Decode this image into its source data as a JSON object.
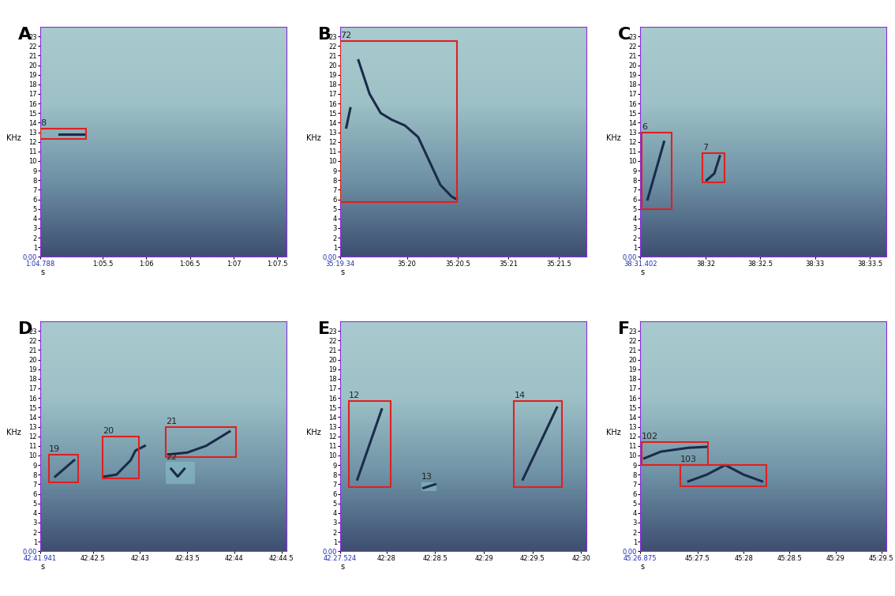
{
  "chart_data": [
    {
      "type": "spectrogram",
      "title": "A",
      "xlabel": "s",
      "ylabel": "KHz",
      "xlim": [
        64.788,
        67.6
      ],
      "xticks": [
        {
          "value": 64.788,
          "label": "1:04.788"
        },
        {
          "value": 65.5,
          "label": "1:05.5"
        },
        {
          "value": 66,
          "label": "1:06"
        },
        {
          "value": 66.5,
          "label": "1:06.5"
        },
        {
          "value": 67,
          "label": "1:07"
        },
        {
          "value": 67.5,
          "label": "1:07.5"
        }
      ],
      "ylim": [
        0,
        24
      ],
      "yticks": [
        {
          "value": 0,
          "label": "0.00"
        },
        1,
        2,
        3,
        4,
        5,
        6,
        7,
        8,
        9,
        10,
        11,
        12,
        13,
        14,
        15,
        16,
        17,
        18,
        19,
        20,
        21,
        22,
        23
      ],
      "calls": [
        {
          "x": [
            65.0,
            65.28
          ],
          "y": [
            12.8,
            12.8
          ]
        }
      ],
      "boxes": [
        {
          "label": "8",
          "x": [
            64.79,
            65.31
          ],
          "y": [
            12.3,
            13.4
          ],
          "color": "#e02020"
        }
      ]
    },
    {
      "type": "spectrogram",
      "title": "B",
      "xlabel": "s",
      "ylabel": "KHz",
      "xlim": [
        2119.34,
        2121.77
      ],
      "xticks": [
        {
          "value": 2119.34,
          "label": "35:19.34"
        },
        {
          "value": 2120,
          "label": "35:20"
        },
        {
          "value": 2120.5,
          "label": "35:20.5"
        },
        {
          "value": 2121,
          "label": "35:21"
        },
        {
          "value": 2121.5,
          "label": "35:21.5"
        }
      ],
      "ylim": [
        0,
        24
      ],
      "yticks": [
        {
          "value": 0,
          "label": "0.00"
        },
        1,
        2,
        3,
        4,
        5,
        6,
        7,
        8,
        9,
        10,
        11,
        12,
        13,
        14,
        15,
        16,
        17,
        18,
        19,
        20,
        21,
        22,
        23
      ],
      "calls": [
        {
          "x": [
            2119.52,
            2119.63,
            2119.74,
            2119.85,
            2119.98,
            2120.11,
            2120.22,
            2120.33,
            2120.44,
            2120.49
          ],
          "y": [
            20.5,
            17,
            15,
            14.3,
            13.7,
            12.5,
            10,
            7.5,
            6.3,
            6
          ]
        },
        {
          "x": [
            2119.4,
            2119.44
          ],
          "y": [
            13.5,
            15.5
          ]
        }
      ],
      "boxes": [
        {
          "label": "72",
          "x": [
            2119.34,
            2120.49
          ],
          "y": [
            5.7,
            22.5
          ],
          "color": "#e02020"
        }
      ]
    },
    {
      "type": "spectrogram",
      "title": "C",
      "xlabel": "s",
      "ylabel": "KHz",
      "xlim": [
        2311.402,
        2313.65
      ],
      "xticks": [
        {
          "value": 2311.402,
          "label": "38:31.402"
        },
        {
          "value": 2312,
          "label": "38:32"
        },
        {
          "value": 2312.5,
          "label": "38:32.5"
        },
        {
          "value": 2313,
          "label": "38:33"
        },
        {
          "value": 2313.5,
          "label": "38:33.5"
        }
      ],
      "ylim": [
        0,
        24
      ],
      "yticks": [
        {
          "value": 0,
          "label": "0.00"
        },
        1,
        2,
        3,
        4,
        5,
        6,
        7,
        8,
        9,
        10,
        11,
        12,
        13,
        14,
        15,
        16,
        17,
        18,
        19,
        20,
        21,
        22,
        23
      ],
      "calls": [
        {
          "x": [
            2311.47,
            2311.62
          ],
          "y": [
            6,
            12
          ]
        },
        {
          "x": [
            2312.01,
            2312.08,
            2312.13
          ],
          "y": [
            8,
            8.7,
            10.5
          ]
        }
      ],
      "boxes": [
        {
          "label": "6",
          "x": [
            2311.416,
            2311.69
          ],
          "y": [
            5,
            13
          ],
          "color": "#e02020"
        },
        {
          "label": "7",
          "x": [
            2311.97,
            2312.17
          ],
          "y": [
            7.8,
            10.8
          ],
          "color": "#e02020"
        }
      ]
    },
    {
      "type": "spectrogram",
      "title": "D",
      "xlabel": "s",
      "ylabel": "KHz",
      "xlim": [
        2561.941,
        2564.55
      ],
      "xticks": [
        {
          "value": 2561.941,
          "label": "42:41.941"
        },
        {
          "value": 2562.5,
          "label": "42:42.5"
        },
        {
          "value": 2563,
          "label": "42:43"
        },
        {
          "value": 2563.5,
          "label": "42:43.5"
        },
        {
          "value": 2564,
          "label": "42:44"
        },
        {
          "value": 2564.5,
          "label": "42:44.5"
        }
      ],
      "ylim": [
        0,
        24
      ],
      "yticks": [
        {
          "value": 0,
          "label": "0.00"
        },
        1,
        2,
        3,
        4,
        5,
        6,
        7,
        8,
        9,
        10,
        11,
        12,
        13,
        14,
        15,
        16,
        17,
        18,
        19,
        20,
        21,
        22,
        23
      ],
      "calls": [
        {
          "x": [
            2562.1,
            2562.3
          ],
          "y": [
            7.8,
            9.5
          ]
        },
        {
          "x": [
            2562.62,
            2562.75,
            2562.9,
            2562.95,
            2563.05
          ],
          "y": [
            7.8,
            8,
            9.5,
            10.5,
            11
          ]
        },
        {
          "x": [
            2563.3,
            2563.5,
            2563.7,
            2563.95
          ],
          "y": [
            10.1,
            10.3,
            11,
            12.5
          ]
        },
        {
          "x": [
            2563.33,
            2563.4,
            2563.47
          ],
          "y": [
            8.6,
            7.8,
            8.6
          ]
        }
      ],
      "boxes": [
        {
          "label": "19",
          "x": [
            2562.03,
            2562.34
          ],
          "y": [
            7.2,
            10.1
          ],
          "color": "#e02020"
        },
        {
          "label": "20",
          "x": [
            2562.6,
            2562.99
          ],
          "y": [
            7.6,
            12
          ],
          "color": "#e02020"
        },
        {
          "label": "21",
          "x": [
            2563.27,
            2564.02
          ],
          "y": [
            9.8,
            13
          ],
          "color": "#e02020"
        },
        {
          "label": "22",
          "x": [
            2563.27,
            2563.58
          ],
          "y": [
            7,
            9.3
          ],
          "color": "none"
        }
      ]
    },
    {
      "type": "spectrogram",
      "title": "E",
      "xlabel": "s",
      "ylabel": "KHz",
      "xlim": [
        2547.524,
        2550.05
      ],
      "xticks": [
        {
          "value": 2547.524,
          "label": "42:27.524"
        },
        {
          "value": 2548,
          "label": "42:28"
        },
        {
          "value": 2548.5,
          "label": "42:28.5"
        },
        {
          "value": 2549,
          "label": "42:29"
        },
        {
          "value": 2549.5,
          "label": "42:29.5"
        },
        {
          "value": 2550,
          "label": "42:30"
        }
      ],
      "ylim": [
        0,
        24
      ],
      "yticks": [
        {
          "value": 0,
          "label": "0.00"
        },
        1,
        2,
        3,
        4,
        5,
        6,
        7,
        8,
        9,
        10,
        11,
        12,
        13,
        14,
        15,
        16,
        17,
        18,
        19,
        20,
        21,
        22,
        23
      ],
      "calls": [
        {
          "x": [
            2547.7,
            2547.95
          ],
          "y": [
            7.5,
            14.8
          ]
        },
        {
          "x": [
            2548.38,
            2548.5
          ],
          "y": [
            6.6,
            7
          ]
        },
        {
          "x": [
            2549.4,
            2549.75
          ],
          "y": [
            7.5,
            15
          ]
        }
      ],
      "boxes": [
        {
          "label": "12",
          "x": [
            2547.61,
            2548.04
          ],
          "y": [
            6.7,
            15.7
          ],
          "color": "#e02020"
        },
        {
          "label": "13",
          "x": [
            2548.36,
            2548.51
          ],
          "y": [
            6.3,
            7.2
          ],
          "color": "none"
        },
        {
          "label": "14",
          "x": [
            2549.31,
            2549.8
          ],
          "y": [
            6.7,
            15.7
          ],
          "color": "#e02020"
        }
      ]
    },
    {
      "type": "spectrogram",
      "title": "F",
      "xlabel": "s",
      "ylabel": "KHz",
      "xlim": [
        2726.875,
        2729.55
      ],
      "xticks": [
        {
          "value": 2726.875,
          "label": "45:26.875"
        },
        {
          "value": 2727.5,
          "label": "45:27.5"
        },
        {
          "value": 2728,
          "label": "45:28"
        },
        {
          "value": 2728.5,
          "label": "45:28.5"
        },
        {
          "value": 2729,
          "label": "45:29"
        },
        {
          "value": 2729.5,
          "label": "45:29.5"
        }
      ],
      "ylim": [
        0,
        24
      ],
      "yticks": [
        {
          "value": 0,
          "label": "0.00"
        },
        1,
        2,
        3,
        4,
        5,
        6,
        7,
        8,
        9,
        10,
        11,
        12,
        13,
        14,
        15,
        16,
        17,
        18,
        19,
        20,
        21,
        22,
        23
      ],
      "calls": [
        {
          "x": [
            2726.92,
            2727.1,
            2727.4,
            2727.6
          ],
          "y": [
            9.7,
            10.4,
            10.8,
            10.9
          ]
        },
        {
          "x": [
            2727.4,
            2727.6,
            2727.8,
            2728.0,
            2728.2
          ],
          "y": [
            7.3,
            8,
            9,
            8,
            7.3
          ]
        }
      ],
      "boxes": [
        {
          "label": "102",
          "x": [
            2726.89,
            2727.61
          ],
          "y": [
            9,
            11.4
          ],
          "color": "#e02020"
        },
        {
          "label": "103",
          "x": [
            2727.31,
            2728.25
          ],
          "y": [
            6.8,
            9
          ],
          "color": "#e02020"
        }
      ]
    }
  ]
}
